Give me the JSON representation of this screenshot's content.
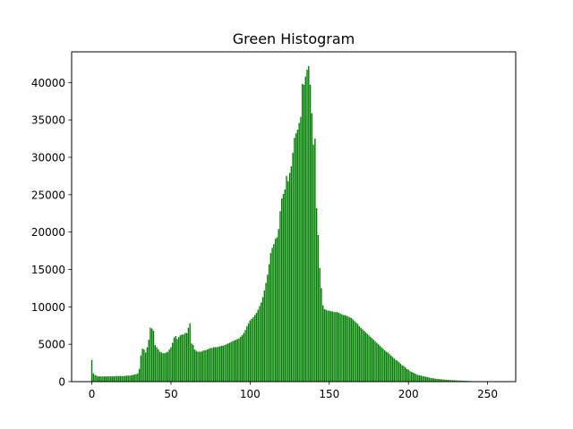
{
  "chart_data": {
    "type": "bar",
    "title": "Green Histogram",
    "xlabel": "",
    "ylabel": "",
    "xlim": [
      -12.75,
      267.75
    ],
    "ylim": [
      0,
      44100
    ],
    "xticks": [
      0,
      50,
      100,
      150,
      200,
      250
    ],
    "yticks": [
      0,
      5000,
      10000,
      15000,
      20000,
      25000,
      30000,
      35000,
      40000
    ],
    "grid": false,
    "legend": "none",
    "bar_color": "#008000",
    "x_start": 0,
    "values": [
      2900,
      1100,
      900,
      800,
      700,
      700,
      700,
      700,
      700,
      700,
      700,
      700,
      700,
      700,
      700,
      750,
      750,
      750,
      750,
      750,
      750,
      750,
      800,
      800,
      800,
      850,
      900,
      950,
      1000,
      1100,
      1700,
      3500,
      4400,
      4300,
      3900,
      4600,
      5600,
      7200,
      7100,
      6800,
      4900,
      4600,
      4300,
      4000,
      3900,
      3800,
      3800,
      3900,
      4000,
      4300,
      4600,
      5200,
      5900,
      6100,
      5700,
      6000,
      6200,
      6300,
      6300,
      6500,
      6500,
      7200,
      7800,
      5100,
      4900,
      4300,
      4100,
      4000,
      4000,
      4000,
      4100,
      4200,
      4200,
      4300,
      4400,
      4500,
      4500,
      4600,
      4600,
      4600,
      4700,
      4700,
      4800,
      4800,
      4900,
      5000,
      5100,
      5200,
      5300,
      5400,
      5500,
      5600,
      5700,
      5800,
      6000,
      6200,
      6500,
      6900,
      7400,
      7800,
      8200,
      8400,
      8600,
      8900,
      9200,
      9600,
      10100,
      10600,
      11300,
      12200,
      13200,
      14300,
      15700,
      17200,
      17900,
      18400,
      19100,
      19300,
      20400,
      22800,
      24500,
      25100,
      25700,
      27500,
      26800,
      27900,
      28800,
      30600,
      32600,
      33200,
      33700,
      34600,
      35400,
      39800,
      39700,
      40800,
      41700,
      42200,
      39700,
      35900,
      31700,
      32500,
      23200,
      19600,
      15200,
      12500,
      10200,
      9700,
      9600,
      9500,
      9500,
      9400,
      9400,
      9300,
      9300,
      9300,
      9200,
      9100,
      9000,
      8900,
      8900,
      8800,
      8700,
      8600,
      8500,
      8300,
      8100,
      7900,
      7700,
      7400,
      7200,
      7000,
      6800,
      6600,
      6400,
      6200,
      6000,
      5800,
      5600,
      5400,
      5200,
      5000,
      4800,
      4600,
      4400,
      4200,
      4000,
      3900,
      3700,
      3500,
      3300,
      3100,
      2900,
      2800,
      2600,
      2400,
      2200,
      2100,
      1900,
      1700,
      1600,
      1400,
      1300,
      1200,
      1100,
      1000,
      900,
      850,
      800,
      750,
      700,
      650,
      600,
      550,
      500,
      460,
      430,
      400,
      380,
      350,
      330,
      310,
      290,
      270,
      250,
      230,
      210,
      200,
      190,
      180,
      170,
      160,
      150,
      140,
      130,
      120,
      110,
      100,
      90,
      80,
      70,
      60,
      50,
      40,
      30,
      20,
      10
    ]
  }
}
